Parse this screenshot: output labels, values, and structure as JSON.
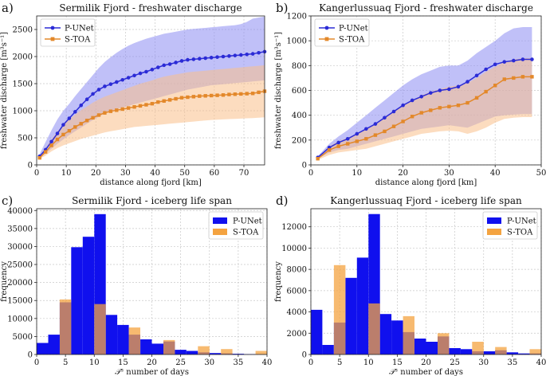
{
  "chart_data": [
    {
      "id": "a",
      "type": "line",
      "panel_label": "a)",
      "title": "Sermilik Fjord - freshwater discharge",
      "xlabel": "distance along fjord [km]",
      "ylabel": "freshwater discharge [m³s⁻¹]",
      "xlim": [
        0,
        77
      ],
      "ylim": [
        0,
        2750
      ],
      "xticks": [
        0,
        10,
        20,
        30,
        40,
        50,
        60,
        70
      ],
      "yticks": [
        0,
        500,
        1000,
        1500,
        2000,
        2500
      ],
      "legend_position": "top-left",
      "x": [
        1,
        3,
        5,
        7,
        9,
        11,
        13,
        15,
        17,
        19,
        21,
        23,
        25,
        27,
        29,
        31,
        33,
        35,
        37,
        39,
        41,
        43,
        45,
        47,
        49,
        51,
        53,
        55,
        57,
        59,
        61,
        63,
        65,
        67,
        69,
        71,
        73,
        75,
        77
      ],
      "series": [
        {
          "name": "P-UNet",
          "color": "#2b2bd6",
          "band_color": "#8c8cf2",
          "marker": "circle",
          "values": [
            160,
            280,
            430,
            580,
            740,
            860,
            980,
            1100,
            1210,
            1310,
            1390,
            1450,
            1490,
            1530,
            1570,
            1610,
            1650,
            1690,
            1720,
            1760,
            1800,
            1840,
            1860,
            1890,
            1920,
            1940,
            1950,
            1960,
            1970,
            1980,
            1990,
            2000,
            2010,
            2020,
            2030,
            2040,
            2050,
            2070,
            2090
          ],
          "lower": [
            140,
            210,
            300,
            390,
            470,
            550,
            620,
            690,
            760,
            830,
            890,
            950,
            990,
            1030,
            1060,
            1090,
            1120,
            1150,
            1180,
            1210,
            1240,
            1270,
            1300,
            1330,
            1360,
            1390,
            1410,
            1430,
            1450,
            1470,
            1480,
            1490,
            1500,
            1510,
            1520,
            1530,
            1540,
            1550,
            1560
          ],
          "upper": [
            200,
            420,
            640,
            840,
            1000,
            1130,
            1270,
            1400,
            1530,
            1660,
            1790,
            1900,
            1990,
            2070,
            2140,
            2200,
            2250,
            2290,
            2330,
            2360,
            2390,
            2420,
            2440,
            2460,
            2480,
            2500,
            2510,
            2520,
            2530,
            2540,
            2550,
            2560,
            2570,
            2580,
            2600,
            2640,
            2700,
            2720,
            2740
          ]
        },
        {
          "name": "S-TOA",
          "color": "#e3882a",
          "band_color": "#f9c08a",
          "marker": "square",
          "values": [
            130,
            240,
            360,
            470,
            560,
            630,
            700,
            760,
            820,
            870,
            920,
            960,
            990,
            1010,
            1030,
            1050,
            1070,
            1090,
            1110,
            1130,
            1160,
            1180,
            1200,
            1220,
            1240,
            1250,
            1260,
            1270,
            1275,
            1280,
            1285,
            1290,
            1300,
            1305,
            1310,
            1315,
            1320,
            1340,
            1360
          ],
          "lower": [
            110,
            170,
            250,
            310,
            360,
            400,
            440,
            480,
            510,
            540,
            570,
            600,
            620,
            640,
            660,
            680,
            700,
            710,
            720,
            730,
            740,
            750,
            760,
            770,
            780,
            790,
            800,
            810,
            820,
            830,
            835,
            840,
            845,
            850,
            855,
            860,
            865,
            870,
            880
          ],
          "upper": [
            160,
            310,
            470,
            620,
            740,
            840,
            930,
            1010,
            1080,
            1150,
            1210,
            1260,
            1300,
            1340,
            1380,
            1420,
            1460,
            1500,
            1530,
            1560,
            1600,
            1630,
            1650,
            1670,
            1690,
            1710,
            1720,
            1730,
            1740,
            1750,
            1760,
            1770,
            1780,
            1790,
            1800,
            1810,
            1820,
            1830,
            1840
          ]
        }
      ]
    },
    {
      "id": "b",
      "type": "line",
      "panel_label": "b)",
      "title": "Kangerlussuaq Fjord - freshwater discharge",
      "xlabel": "distance along fjord [km]",
      "ylabel": "freshwater discharge [m³s⁻¹]",
      "xlim": [
        0,
        50
      ],
      "ylim": [
        0,
        1200
      ],
      "xticks": [
        0,
        10,
        20,
        30,
        40,
        50
      ],
      "yticks": [
        0,
        200,
        400,
        600,
        800,
        1000,
        1200
      ],
      "legend_position": "top-left",
      "x": [
        1.5,
        4,
        6,
        8,
        10,
        12,
        14,
        16,
        18,
        20,
        22,
        24,
        26,
        28,
        30,
        32,
        34,
        36,
        38,
        40,
        42,
        44,
        46,
        48
      ],
      "series": [
        {
          "name": "P-UNet",
          "color": "#2b2bd6",
          "band_color": "#8c8cf2",
          "marker": "circle",
          "values": [
            60,
            140,
            180,
            210,
            250,
            290,
            330,
            380,
            430,
            480,
            520,
            550,
            580,
            600,
            610,
            630,
            670,
            720,
            770,
            810,
            830,
            840,
            850,
            850
          ],
          "lower": [
            50,
            100,
            120,
            130,
            150,
            170,
            190,
            210,
            230,
            250,
            270,
            290,
            300,
            310,
            320,
            310,
            300,
            330,
            360,
            390,
            400,
            405,
            410,
            410
          ],
          "upper": [
            70,
            170,
            230,
            280,
            340,
            400,
            460,
            520,
            580,
            640,
            690,
            730,
            760,
            790,
            800,
            800,
            840,
            900,
            950,
            1000,
            1060,
            1100,
            1110,
            1110
          ]
        },
        {
          "name": "S-TOA",
          "color": "#e3882a",
          "band_color": "#f9c08a",
          "marker": "square",
          "values": [
            50,
            120,
            150,
            170,
            190,
            210,
            240,
            270,
            310,
            350,
            390,
            420,
            440,
            460,
            470,
            480,
            500,
            540,
            590,
            640,
            690,
            700,
            710,
            710
          ],
          "lower": [
            40,
            80,
            100,
            110,
            120,
            130,
            150,
            170,
            190,
            210,
            230,
            250,
            260,
            270,
            275,
            270,
            250,
            270,
            300,
            340,
            370,
            380,
            385,
            385
          ],
          "upper": [
            60,
            150,
            190,
            220,
            250,
            290,
            330,
            380,
            430,
            480,
            520,
            560,
            590,
            610,
            630,
            640,
            660,
            700,
            750,
            790,
            830,
            850,
            860,
            860
          ]
        }
      ]
    },
    {
      "id": "c",
      "type": "bar",
      "panel_label": "c)",
      "title": "Sermilik Fjord - iceberg life span",
      "xlabel": "number of days",
      "xlabel_symbol": "𝒯ˢ",
      "ylabel": "frequency",
      "xlim": [
        0,
        40
      ],
      "ylim": [
        0,
        40500
      ],
      "xticks": [
        0,
        5,
        10,
        15,
        20,
        25,
        30,
        35,
        40
      ],
      "yticks": [
        0,
        5000,
        10000,
        15000,
        20000,
        25000,
        30000,
        35000,
        40000
      ],
      "legend_position": "top-right",
      "bin_width": 2,
      "bin_starts": [
        0,
        2,
        4,
        6,
        8,
        10,
        12,
        14,
        16,
        18,
        20,
        22,
        24,
        26,
        28,
        30,
        32,
        34,
        36,
        38
      ],
      "series": [
        {
          "name": "P-UNet",
          "color": "#1010ee",
          "values": [
            3200,
            5500,
            14500,
            29800,
            32700,
            39000,
            11000,
            8200,
            5500,
            4200,
            3000,
            3600,
            1300,
            1000,
            600,
            400,
            300,
            200,
            100,
            100
          ]
        },
        {
          "name": "S-TOA",
          "color": "#f4a340",
          "values": [
            0,
            0,
            15300,
            0,
            0,
            14000,
            0,
            0,
            7500,
            0,
            0,
            4000,
            0,
            0,
            2300,
            0,
            1500,
            0,
            0,
            1000
          ]
        }
      ]
    },
    {
      "id": "d",
      "type": "bar",
      "panel_label": "d)",
      "title": "Kangerlussuaq Fjord - iceberg life span",
      "xlabel": "number of days",
      "xlabel_symbol": "𝒯ˢ",
      "ylabel": "frequency",
      "xlim": [
        0,
        40
      ],
      "ylim": [
        0,
        13700
      ],
      "xticks": [
        0,
        5,
        10,
        15,
        20,
        25,
        30,
        35,
        40
      ],
      "yticks": [
        0,
        2000,
        4000,
        6000,
        8000,
        10000,
        12000
      ],
      "legend_position": "top-right",
      "bin_width": 2,
      "bin_starts": [
        0,
        2,
        4,
        6,
        8,
        10,
        12,
        14,
        16,
        18,
        20,
        22,
        24,
        26,
        28,
        30,
        32,
        34,
        36,
        38
      ],
      "series": [
        {
          "name": "P-UNet",
          "color": "#1010ee",
          "values": [
            4200,
            900,
            3000,
            7200,
            9100,
            13200,
            3800,
            3200,
            2100,
            1500,
            1200,
            1700,
            600,
            500,
            300,
            300,
            400,
            200,
            100,
            100
          ]
        },
        {
          "name": "S-TOA",
          "color": "#f4a340",
          "values": [
            0,
            0,
            8400,
            0,
            0,
            4800,
            0,
            0,
            3600,
            0,
            0,
            2000,
            0,
            0,
            1200,
            0,
            700,
            0,
            0,
            500
          ]
        }
      ]
    }
  ]
}
